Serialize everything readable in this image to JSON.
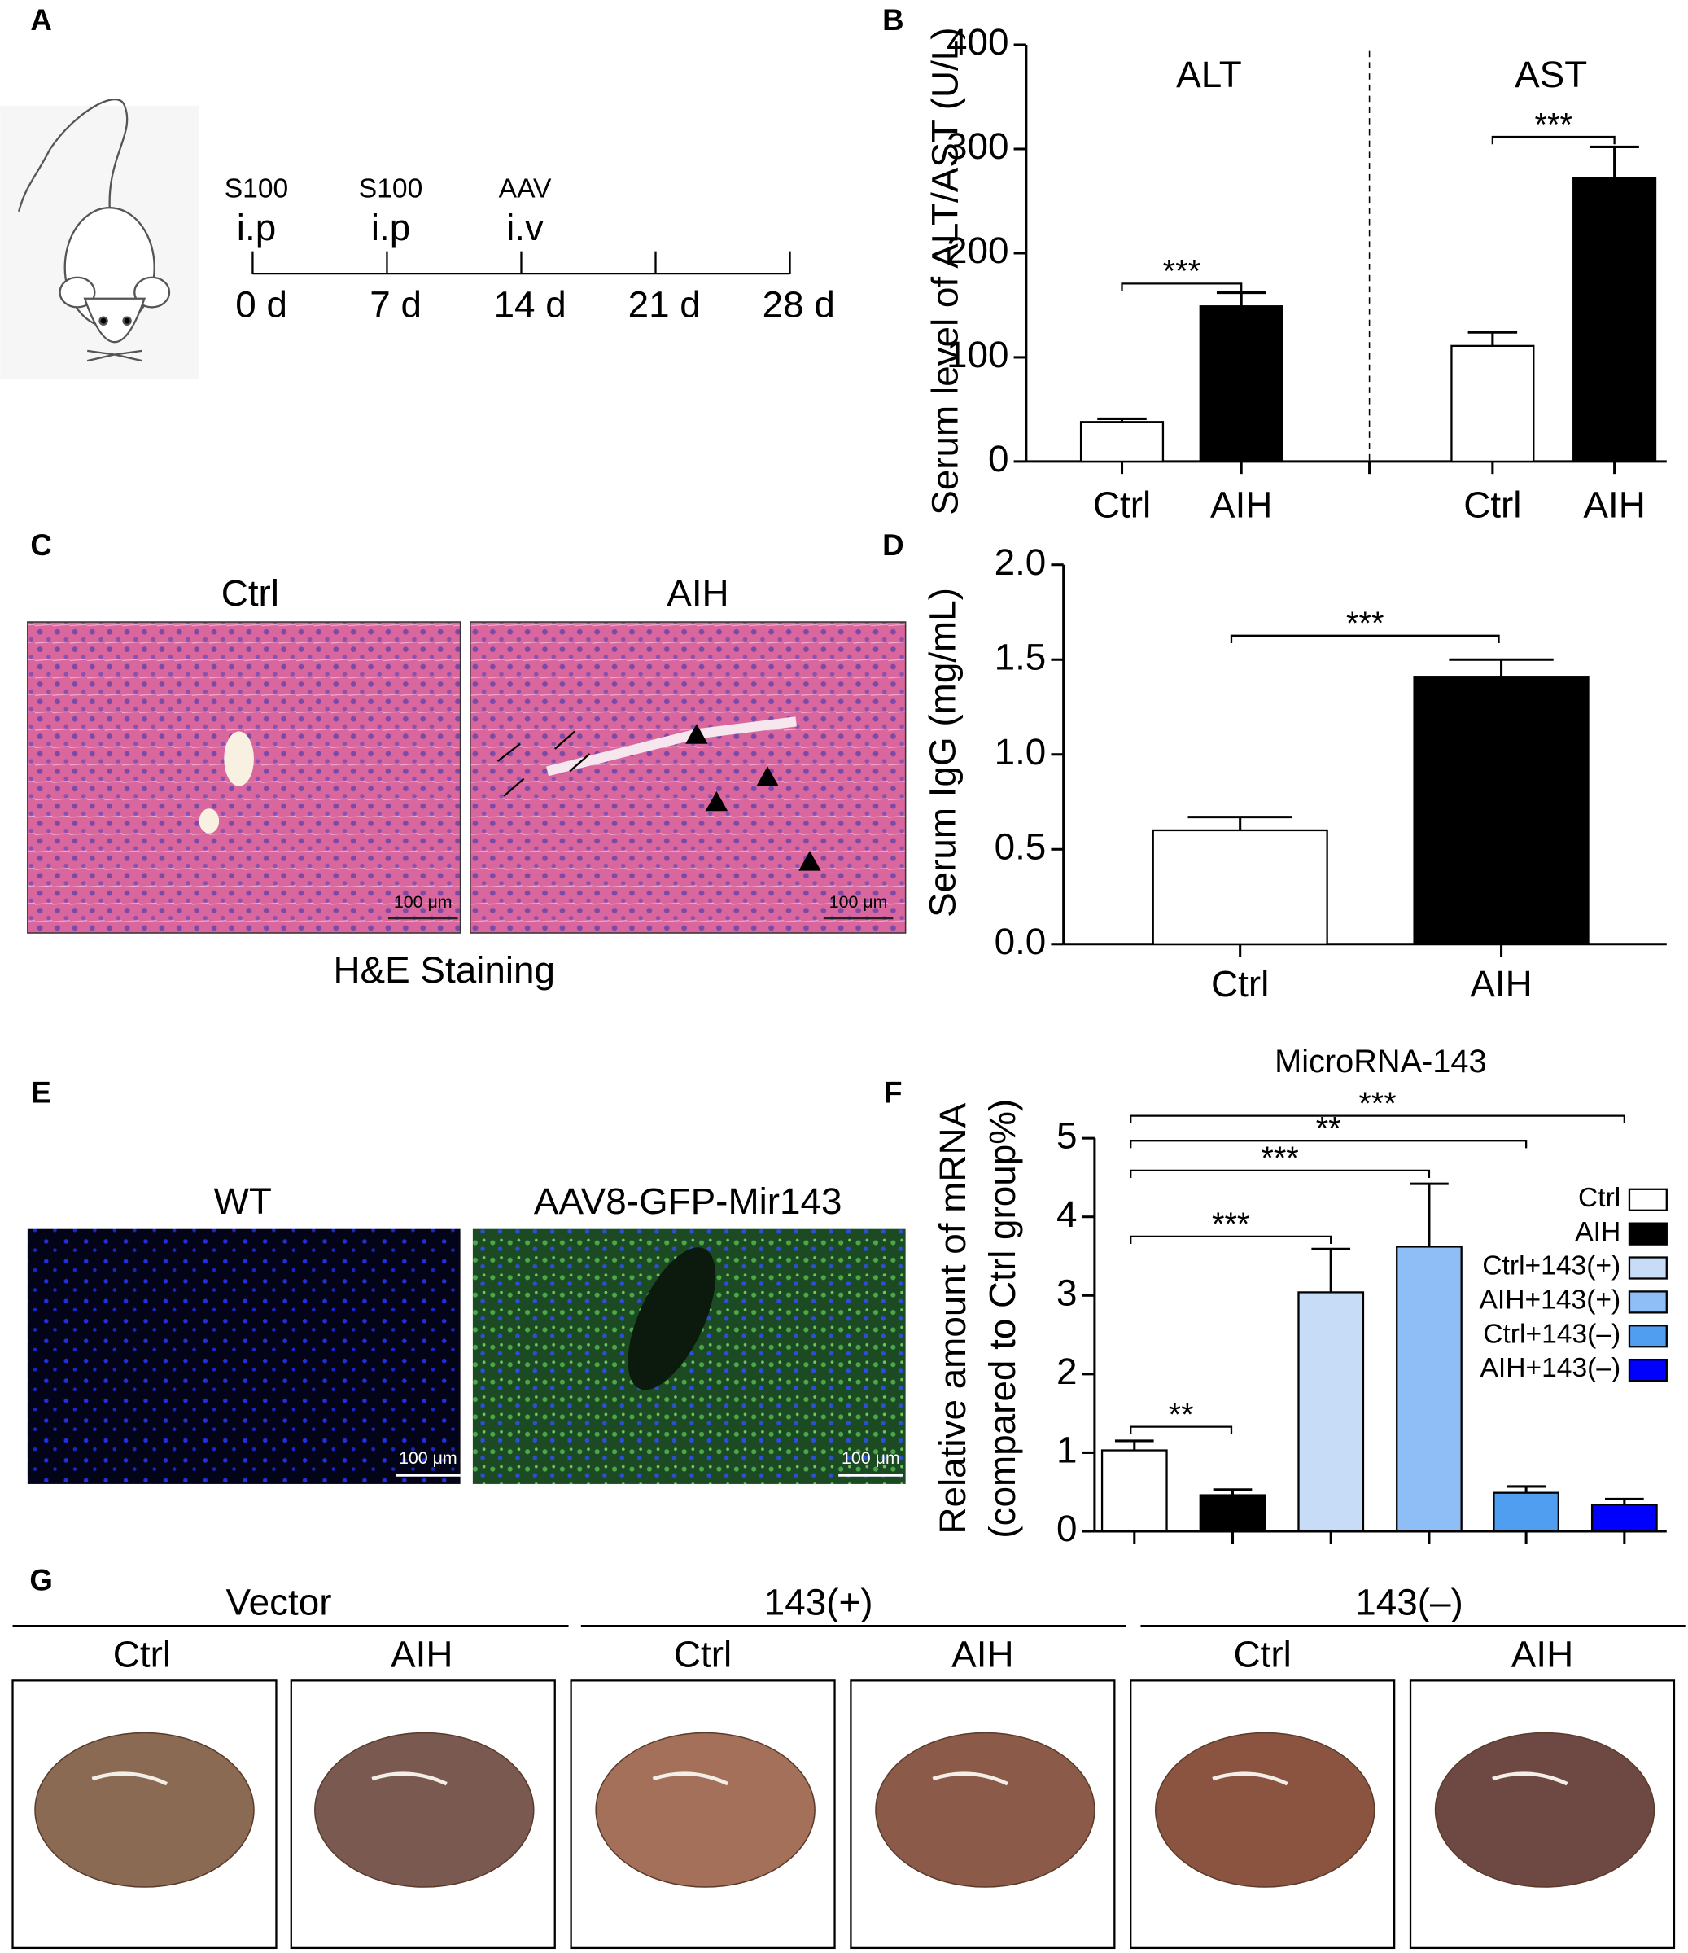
{
  "panel_labels": [
    "A",
    "B",
    "C",
    "D",
    "E",
    "F",
    "G"
  ],
  "timeline": {
    "agents": [
      {
        "name": "S100",
        "route": "i.p"
      },
      {
        "name": "S100",
        "route": "i.p"
      },
      {
        "name": "AAV",
        "route": "i.v"
      }
    ],
    "days": [
      "0 d",
      "7 d",
      "14 d",
      "21 d",
      "28 d"
    ]
  },
  "chart_data": [
    {
      "type": "bar",
      "groups": [
        "ALT",
        "AST"
      ],
      "categories": [
        "Ctrl",
        "AIH",
        "Ctrl",
        "AIH"
      ],
      "values": [
        38,
        149,
        111,
        272
      ],
      "errors": [
        3,
        13,
        13,
        30
      ],
      "colors": [
        "#ffffff",
        "#000000",
        "#ffffff",
        "#000000"
      ],
      "ylabel": "Serum level of ALT/AST  (U/L)",
      "ylim": [
        0,
        400
      ],
      "yticks": [
        0,
        100,
        200,
        300,
        400
      ],
      "significance": [
        "***",
        "***"
      ]
    },
    {
      "type": "bar",
      "categories": [
        "Ctrl",
        "AIH"
      ],
      "values": [
        0.6,
        1.41
      ],
      "errors": [
        0.07,
        0.09
      ],
      "colors": [
        "#ffffff",
        "#000000"
      ],
      "ylabel": "Serum IgG (mg/mL)",
      "ylim": [
        0,
        2
      ],
      "yticks": [
        {
          "value": 0,
          "label": "0.0"
        },
        0.5,
        {
          "value": 1,
          "label": "1.0"
        },
        1.5,
        {
          "value": 2,
          "label": "2.0"
        }
      ],
      "significance": [
        "***"
      ]
    },
    {
      "type": "bar",
      "title": "MicroRNA-143",
      "categories": [
        "Ctrl",
        "AIH",
        "Ctrl+143(+)",
        "AIH+143(+)",
        "Ctrl+143(–)",
        "AIH+143(–)"
      ],
      "values": [
        1.03,
        0.46,
        3.04,
        3.62,
        0.49,
        0.34
      ],
      "errors": [
        0.12,
        0.07,
        0.55,
        0.8,
        0.08,
        0.07
      ],
      "colors": [
        "#ffffff",
        "#000000",
        "#c6dcf7",
        "#8fbdf5",
        "#4f9ef0",
        "#0000ff"
      ],
      "ylabel": [
        "Relative amount of mRNA",
        "(compared to Ctrl group%)"
      ],
      "ylim": [
        0,
        5
      ],
      "yticks": [
        0,
        1,
        2,
        3,
        4,
        5
      ],
      "legend": "right",
      "significance": [
        "**",
        "***",
        "***",
        "**",
        "***"
      ]
    }
  ],
  "histology": {
    "labels": [
      "Ctrl",
      "AIH"
    ],
    "scale_bar": "100 μm",
    "caption": "H&E Staining"
  },
  "fluorescence": {
    "labels": [
      "WT",
      "AAV8-GFP-Mir143"
    ],
    "scale_bar": "100 μm"
  },
  "livers": {
    "groups": [
      "Vector",
      "143(+)",
      "143(–)"
    ],
    "conditions": [
      "Ctrl",
      "AIH"
    ]
  }
}
